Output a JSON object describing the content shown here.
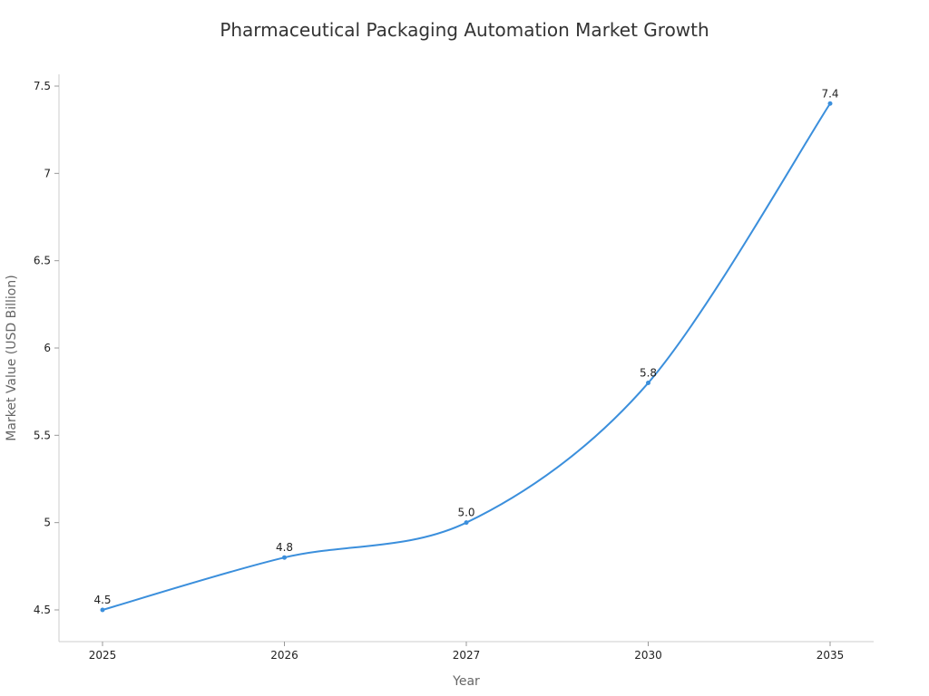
{
  "chart_data": {
    "type": "line",
    "title": "Pharmaceutical Packaging Automation Market Growth",
    "xlabel": "Year",
    "ylabel": "Market Value (USD Billion)",
    "categories": [
      "2025",
      "2026",
      "2027",
      "2030",
      "2035"
    ],
    "series": [
      {
        "values": [
          4.5,
          4.8,
          5.0,
          5.8,
          7.4
        ],
        "labels": [
          "4.5",
          "4.8",
          "5.0",
          "5.8",
          "7.4"
        ],
        "color": "#3b8fdc"
      }
    ],
    "y_ticks": [
      4.5,
      5,
      5.5,
      6,
      6.5,
      7,
      7.5
    ],
    "y_tick_labels": [
      "4.5",
      "5",
      "5.5",
      "6",
      "6.5",
      "7",
      "7.5"
    ],
    "ylim": [
      4.5,
      7.5
    ],
    "grid": false,
    "legend": "none",
    "smooth": true
  }
}
